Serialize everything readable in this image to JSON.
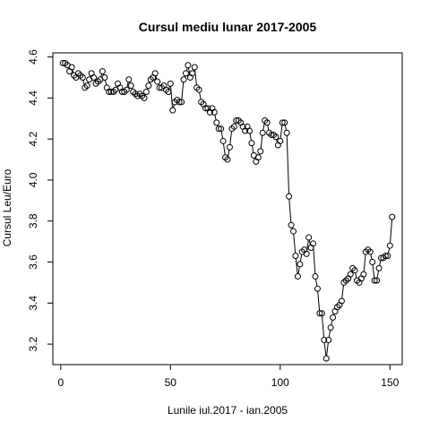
{
  "chart_data": {
    "type": "line",
    "title": "Cursul mediu lunar 2017-2005",
    "xlabel": "Lunile iul.2017 - ian.2005",
    "ylabel": "Cursul Leu/Euro",
    "xlim": [
      -3.6,
      155.6
    ],
    "ylim": [
      3.1,
      4.62
    ],
    "xticks": [
      0,
      50,
      100,
      150
    ],
    "yticks": [
      3.2,
      3.4,
      3.6,
      3.8,
      4.0,
      4.2,
      4.4,
      4.6
    ],
    "x_tick_labels": [
      "0",
      "50",
      "100",
      "150"
    ],
    "y_tick_labels": [
      "3.2",
      "3.4",
      "3.6",
      "3.8",
      "4.0",
      "4.2",
      "4.4",
      "4.6"
    ],
    "grid": false,
    "marker": "open-circle",
    "series": [
      {
        "values": [
          4.57,
          4.57,
          4.56,
          4.53,
          4.55,
          4.51,
          4.5,
          4.52,
          4.51,
          4.5,
          4.45,
          4.46,
          4.49,
          4.52,
          4.5,
          4.47,
          4.48,
          4.49,
          4.53,
          4.5,
          4.45,
          4.43,
          4.43,
          4.43,
          4.44,
          4.47,
          4.45,
          4.43,
          4.43,
          4.44,
          4.49,
          4.46,
          4.43,
          4.42,
          4.41,
          4.42,
          4.41,
          4.4,
          4.43,
          4.46,
          4.49,
          4.5,
          4.52,
          4.48,
          4.45,
          4.45,
          4.46,
          4.44,
          4.43,
          4.47,
          4.34,
          4.38,
          4.39,
          4.38,
          4.38,
          4.49,
          4.52,
          4.56,
          4.5,
          4.52,
          4.55,
          4.45,
          4.44,
          4.38,
          4.37,
          4.35,
          4.35,
          4.33,
          4.35,
          4.33,
          4.28,
          4.25,
          4.25,
          4.19,
          4.11,
          4.1,
          4.16,
          4.25,
          4.26,
          4.29,
          4.29,
          4.28,
          4.26,
          4.24,
          4.26,
          4.24,
          4.18,
          4.12,
          4.09,
          4.11,
          4.14,
          4.23,
          4.29,
          4.28,
          4.23,
          4.22,
          4.22,
          4.21,
          4.17,
          4.19,
          4.28,
          4.28,
          4.23,
          3.92,
          3.78,
          3.75,
          3.63,
          3.53,
          3.59,
          3.65,
          3.66,
          3.64,
          3.72,
          3.67,
          3.69,
          3.53,
          3.47,
          3.35,
          3.35,
          3.22,
          3.13,
          3.22,
          3.28,
          3.33,
          3.36,
          3.38,
          3.39,
          3.41,
          3.5,
          3.51,
          3.52,
          3.54,
          3.57,
          3.56,
          3.51,
          3.5,
          3.52,
          3.54,
          3.65,
          3.66,
          3.65,
          3.6,
          3.51,
          3.51,
          3.57,
          3.62,
          3.62,
          3.63,
          3.63,
          3.68,
          3.82
        ]
      }
    ]
  }
}
